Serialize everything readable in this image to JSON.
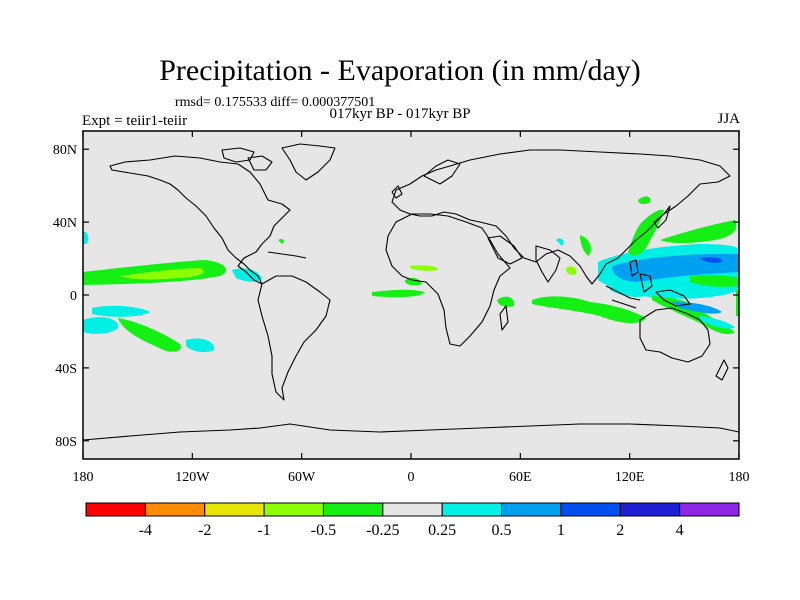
{
  "figure": {
    "title": "Precipitation - Evaporation (in mm/day)",
    "stats": "rmsd= 0.175533 diff= 0.000377501",
    "subtitle": "017kyr BP - 017kyr BP",
    "experiment": "Expt = teiir1-teiir",
    "season": "JJA"
  },
  "map": {
    "background": "#e6e6e6",
    "lat_ticks": [
      {
        "value": 80,
        "label": "80N"
      },
      {
        "value": 40,
        "label": "40N"
      },
      {
        "value": 0,
        "label": "0"
      },
      {
        "value": -40,
        "label": "40S"
      },
      {
        "value": -80,
        "label": "80S"
      }
    ],
    "lon_ticks": [
      {
        "value": -180,
        "label": "180"
      },
      {
        "value": -120,
        "label": "120W"
      },
      {
        "value": -60,
        "label": "60W"
      },
      {
        "value": 0,
        "label": "0"
      },
      {
        "value": 60,
        "label": "60E"
      },
      {
        "value": 120,
        "label": "120E"
      },
      {
        "value": 180,
        "label": "180"
      }
    ]
  },
  "colorbar": {
    "colors": [
      "#ff0000",
      "#ff8c00",
      "#e6e600",
      "#8cff00",
      "#14f014",
      "#e6e6e6",
      "#00f0e6",
      "#00a0f0",
      "#0050f0",
      "#1e1ed2",
      "#8c28e6"
    ],
    "labels": [
      "-4",
      "-2",
      "-1",
      "-0.5",
      "-0.25",
      "0.25",
      "0.5",
      "1",
      "2",
      "4"
    ]
  }
}
